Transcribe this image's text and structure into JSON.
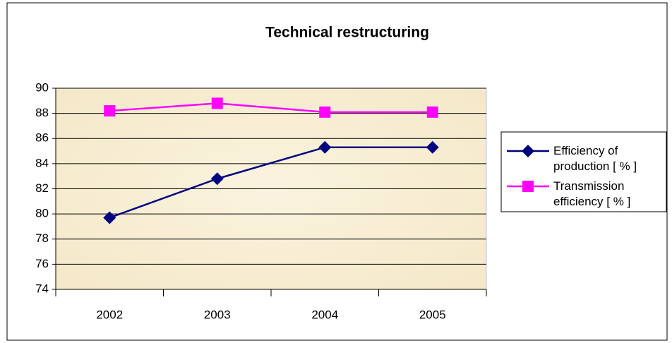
{
  "chart_data": {
    "type": "line",
    "title": "Technical restructuring",
    "categories": [
      "2002",
      "2003",
      "2004",
      "2005"
    ],
    "series": [
      {
        "name": "Efficiency of production [ % ]",
        "color": "#000080",
        "marker": "diamond",
        "values": [
          79.7,
          82.8,
          85.3,
          85.3
        ]
      },
      {
        "name": "Transmission efficiency [ % ]",
        "color": "#ff00ff",
        "marker": "square",
        "values": [
          88.2,
          88.8,
          88.1,
          88.1
        ]
      }
    ],
    "ylim": [
      74,
      90
    ],
    "yticks": [
      74,
      76,
      78,
      80,
      82,
      84,
      86,
      88,
      90
    ],
    "grid": true,
    "legend": "right"
  }
}
